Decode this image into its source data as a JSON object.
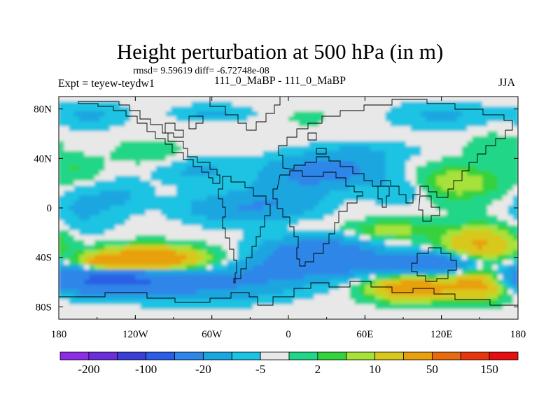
{
  "title": "Height perturbation at 500 hPa (in m)",
  "stats": "rmsd= 9.59619 diff= -6.72748e-08",
  "left_label": "Expt = teyew-teydw1",
  "center_label": "111_0_MaBP - 111_0_MaBP",
  "right_label": "JJA",
  "colors": {
    "land_outline": "#000000",
    "palette": [
      "#8c2ee6",
      "#6a2fd8",
      "#3b3fd6",
      "#2a5ee6",
      "#2e86e8",
      "#1aa6e0",
      "#1cc3e2",
      "#e8e8e8",
      "#22d688",
      "#34d23c",
      "#a6e23a",
      "#d8c81e",
      "#e8a00e",
      "#e66a10",
      "#e8360c",
      "#e60e0e"
    ]
  },
  "chart_data": {
    "type": "contour-map",
    "title": "Height perturbation at 500 hPa (in m)",
    "variable": "500 hPa geopotential height perturbation",
    "units": "m",
    "season": "JJA",
    "xlim": [
      -180,
      180
    ],
    "ylim": [
      -90,
      90
    ],
    "x_ticks": [
      {
        "value": -180,
        "label": "180"
      },
      {
        "value": -120,
        "label": "120W"
      },
      {
        "value": -60,
        "label": "60W"
      },
      {
        "value": 0,
        "label": "0"
      },
      {
        "value": 60,
        "label": "60E"
      },
      {
        "value": 120,
        "label": "120E"
      },
      {
        "value": 180,
        "label": "180"
      }
    ],
    "y_ticks": [
      {
        "value": 80,
        "label": "80N"
      },
      {
        "value": 40,
        "label": "40N"
      },
      {
        "value": 0,
        "label": "0"
      },
      {
        "value": -40,
        "label": "40S"
      },
      {
        "value": -80,
        "label": "80S"
      }
    ],
    "colorbar_levels": [
      -300,
      -200,
      -150,
      -100,
      -50,
      -20,
      -10,
      -5,
      -2,
      2,
      5,
      10,
      20,
      50,
      100,
      150
    ],
    "colorbar_labels": [
      {
        "level": -200,
        "label": "-200"
      },
      {
        "level": -100,
        "label": "-100"
      },
      {
        "level": -20,
        "label": "-20"
      },
      {
        "level": -5,
        "label": "-5"
      },
      {
        "level": 2,
        "label": "2"
      },
      {
        "level": 10,
        "label": "10"
      },
      {
        "level": 50,
        "label": "50"
      },
      {
        "level": 150,
        "label": "150"
      }
    ],
    "anomaly_blobs": [
      {
        "lon": -110,
        "lat": -42,
        "rlon": 40,
        "rlat": 10,
        "value": 45
      },
      {
        "lon": -145,
        "lat": -45,
        "rlon": 22,
        "rlat": 6,
        "value": 25
      },
      {
        "lon": -135,
        "lat": -58,
        "rlon": 48,
        "rlat": 10,
        "value": -55
      },
      {
        "lon": -175,
        "lat": -55,
        "rlon": 20,
        "rlat": 14,
        "value": -12
      },
      {
        "lon": -70,
        "lat": -63,
        "rlon": 60,
        "rlat": 12,
        "value": -15
      },
      {
        "lon": -20,
        "lat": -52,
        "rlon": 35,
        "rlat": 14,
        "value": -12
      },
      {
        "lon": -35,
        "lat": -40,
        "rlon": 25,
        "rlat": 8,
        "value": 3
      },
      {
        "lon": 25,
        "lat": -40,
        "rlon": 40,
        "rlat": 14,
        "value": -40
      },
      {
        "lon": 105,
        "lat": -45,
        "rlon": 40,
        "rlat": 8,
        "value": -45
      },
      {
        "lon": 95,
        "lat": -65,
        "rlon": 30,
        "rlat": 10,
        "value": 35
      },
      {
        "lon": 150,
        "lat": -62,
        "rlon": 28,
        "rlat": 12,
        "value": 30
      },
      {
        "lon": 150,
        "lat": -30,
        "rlon": 30,
        "rlat": 15,
        "value": 25
      },
      {
        "lon": 80,
        "lat": -18,
        "rlon": 30,
        "rlat": 8,
        "value": 12
      },
      {
        "lon": 20,
        "lat": -15,
        "rlon": 25,
        "rlat": 5,
        "value": 3
      },
      {
        "lon": -40,
        "lat": 0,
        "rlon": 40,
        "rlat": 12,
        "value": -15
      },
      {
        "lon": 0,
        "lat": 10,
        "rlon": 30,
        "rlat": 15,
        "value": -12
      },
      {
        "lon": 30,
        "lat": 30,
        "rlon": 40,
        "rlat": 12,
        "value": -25
      },
      {
        "lon": 90,
        "lat": 15,
        "rlon": 25,
        "rlat": 12,
        "value": -8
      },
      {
        "lon": -160,
        "lat": 0,
        "rlon": 25,
        "rlat": 20,
        "value": -8
      },
      {
        "lon": -70,
        "lat": 30,
        "rlon": 30,
        "rlat": 10,
        "value": -8
      },
      {
        "lon": -165,
        "lat": 30,
        "rlon": 20,
        "rlat": 12,
        "value": 6
      },
      {
        "lon": 130,
        "lat": 20,
        "rlon": 40,
        "rlat": 15,
        "value": 12
      },
      {
        "lon": 120,
        "lat": 75,
        "rlon": 35,
        "rlat": 10,
        "value": -8
      },
      {
        "lon": 160,
        "lat": 50,
        "rlon": 20,
        "rlat": 10,
        "value": 5
      },
      {
        "lon": -110,
        "lat": 45,
        "rlon": 25,
        "rlat": 10,
        "value": 5
      },
      {
        "lon": -60,
        "lat": 77,
        "rlon": 28,
        "rlat": 6,
        "value": -8
      },
      {
        "lon": 60,
        "lat": 45,
        "rlon": 40,
        "rlat": 8,
        "value": -6
      },
      {
        "lon": 15,
        "lat": 73,
        "rlon": 15,
        "rlat": 6,
        "value": 4
      },
      {
        "lon": -155,
        "lat": 75,
        "rlon": 25,
        "rlat": 10,
        "value": -8
      },
      {
        "lon": -130,
        "lat": 10,
        "rlon": 20,
        "rlat": 12,
        "value": -6
      }
    ],
    "background_value": -3.5
  }
}
